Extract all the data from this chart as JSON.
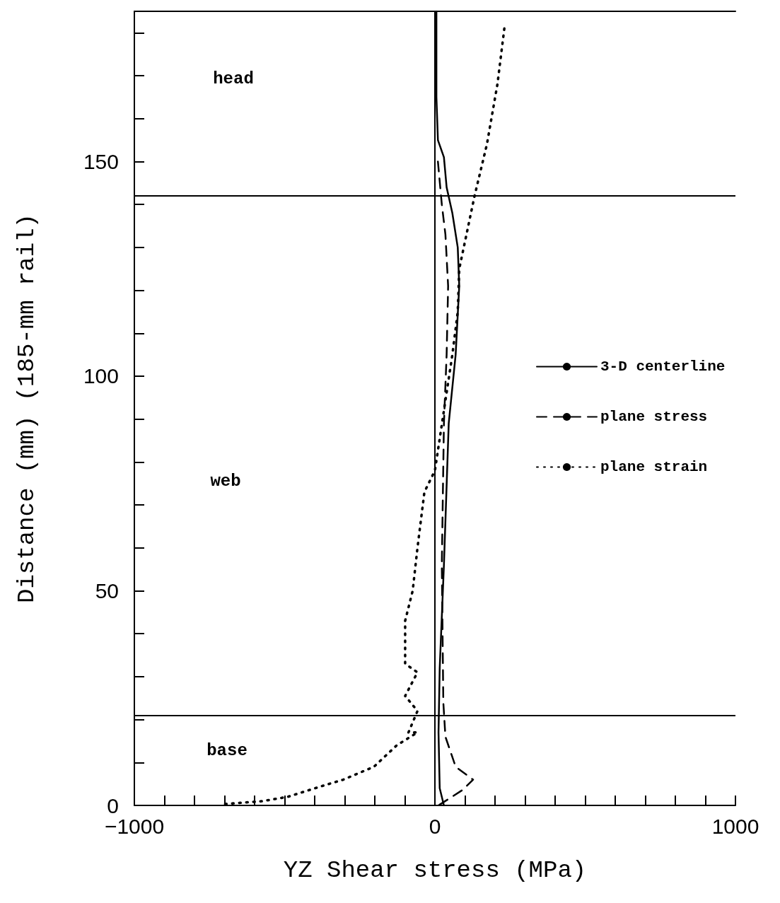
{
  "chart_data": {
    "type": "line",
    "xlabel": "YZ Shear stress (MPa)",
    "ylabel": "Distance (mm) (185-mm rail)",
    "xlim": [
      -1000,
      1000
    ],
    "xticks": [
      {
        "value": -1000,
        "label": "−1000"
      },
      {
        "value": -900,
        "label": null
      },
      {
        "value": -800,
        "label": null
      },
      {
        "value": -700,
        "label": null
      },
      {
        "value": -600,
        "label": null
      },
      {
        "value": -500,
        "label": null
      },
      {
        "value": -400,
        "label": null
      },
      {
        "value": -300,
        "label": null
      },
      {
        "value": -200,
        "label": null
      },
      {
        "value": -100,
        "label": null
      },
      {
        "value": 0,
        "label": "0"
      },
      {
        "value": 100,
        "label": null
      },
      {
        "value": 200,
        "label": null
      },
      {
        "value": 300,
        "label": null
      },
      {
        "value": 400,
        "label": null
      },
      {
        "value": 500,
        "label": null
      },
      {
        "value": 600,
        "label": null
      },
      {
        "value": 700,
        "label": null
      },
      {
        "value": 800,
        "label": null
      },
      {
        "value": 900,
        "label": null
      },
      {
        "value": 1000,
        "label": "1000"
      }
    ],
    "ylim": [
      0,
      185
    ],
    "yticks": [
      0,
      {
        "value": 10,
        "label": null
      },
      {
        "value": 20,
        "label": null
      },
      {
        "value": 30,
        "label": null
      },
      {
        "value": 40,
        "label": null
      },
      50,
      {
        "value": 60,
        "label": null
      },
      {
        "value": 70,
        "label": null
      },
      {
        "value": 80,
        "label": null
      },
      {
        "value": 90,
        "label": null
      },
      100,
      {
        "value": 110,
        "label": null
      },
      {
        "value": 120,
        "label": null
      },
      {
        "value": 130,
        "label": null
      },
      {
        "value": 140,
        "label": null
      },
      150,
      {
        "value": 160,
        "label": null
      },
      {
        "value": 170,
        "label": null
      },
      {
        "value": 180,
        "label": null
      }
    ],
    "grid": false,
    "legend": "right",
    "marker": "none",
    "series": [
      {
        "name": "3-D centerline",
        "color": "#000000",
        "line_style": "solid",
        "x": [
          5,
          5,
          10,
          30,
          39,
          58,
          76,
          81,
          69,
          46,
          30,
          16,
          12,
          16,
          30
        ],
        "values": [
          185,
          165,
          155,
          151,
          144,
          138,
          130,
          121,
          105,
          89,
          56,
          32,
          17,
          4,
          0
        ]
      },
      {
        "name": "plane stress",
        "color": "#000000",
        "line_style": "dashed",
        "x": [
          10,
          23,
          35,
          44,
          39,
          30,
          23,
          28,
          35,
          69,
          127,
          92,
          12
        ],
        "values": [
          150,
          140,
          133,
          121,
          105,
          89,
          56,
          24,
          16,
          9,
          6,
          3.6,
          0
        ]
      },
      {
        "name": "plane strain",
        "color": "#000000",
        "line_style": "dotted",
        "x": [
          231,
          208,
          173,
          132,
          81,
          76,
          58,
          30,
          0,
          -35,
          -58,
          -74,
          -99,
          -99,
          -58,
          -99,
          -58,
          -88,
          -58,
          -127,
          -203,
          -305,
          -381,
          -490,
          -573,
          -704
        ],
        "values": [
          181,
          168,
          154,
          142,
          125,
          115,
          105,
          92,
          78,
          73,
          60,
          50,
          43,
          33,
          31,
          25.5,
          22,
          17,
          17,
          14,
          9,
          6,
          4.4,
          2,
          1,
          0.3
        ]
      }
    ],
    "ref_lines": [
      {
        "axis": "x",
        "value": 0,
        "color": "#000000"
      },
      {
        "axis": "y",
        "value": 142,
        "color": "#000000"
      },
      {
        "axis": "y",
        "value": 21,
        "color": "#000000"
      }
    ],
    "annotations": [
      "head",
      "web",
      "base"
    ]
  }
}
